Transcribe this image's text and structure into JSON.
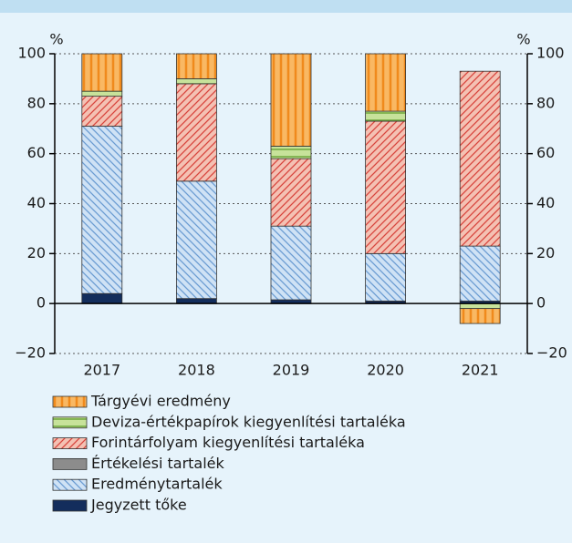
{
  "chart_data": {
    "type": "stacked_bar",
    "y_unit_left": "%",
    "y_unit_right": "%",
    "categories": [
      "2017",
      "2018",
      "2019",
      "2020",
      "2021"
    ],
    "series": [
      {
        "name": "Tárgyévi eredmény",
        "color": "#f9b863",
        "hatch": "#f08a1c",
        "pattern": "vertical",
        "values": [
          15,
          10,
          37,
          23,
          -6
        ]
      },
      {
        "name": "Deviza-értékpapírok kiegyenlítési tartaléka",
        "color": "#c7e29a",
        "hatch": "#5f9e2f",
        "pattern": "horizontal",
        "values": [
          2,
          2,
          5,
          4,
          -2
        ]
      },
      {
        "name": "Forintárfolyam kiegyenlítési tartaléka",
        "color": "#f4c1b3",
        "hatch": "#d8443c",
        "pattern": "diagonal-up",
        "values": [
          12,
          39,
          27,
          53,
          70
        ]
      },
      {
        "name": "Értékelési tartalék",
        "color": "#8c8c8c",
        "hatch": "#8c8c8c",
        "pattern": "solid",
        "values": [
          0,
          0,
          0,
          0,
          0
        ]
      },
      {
        "name": "Eredménytartalék",
        "color": "#cfe2f5",
        "hatch": "#6a9bd2",
        "pattern": "diagonal-down",
        "values": [
          67,
          47,
          29.5,
          19,
          22
        ]
      },
      {
        "name": "Jegyzett tőke",
        "color": "#132d5c",
        "hatch": "#132d5c",
        "pattern": "solid",
        "values": [
          4,
          2,
          1.5,
          1,
          1
        ]
      }
    ],
    "ylim": [
      -20,
      100
    ],
    "yticks": [
      {
        "value": -20,
        "label": "−20"
      },
      0,
      20,
      40,
      60,
      80,
      100
    ],
    "grid": true
  }
}
